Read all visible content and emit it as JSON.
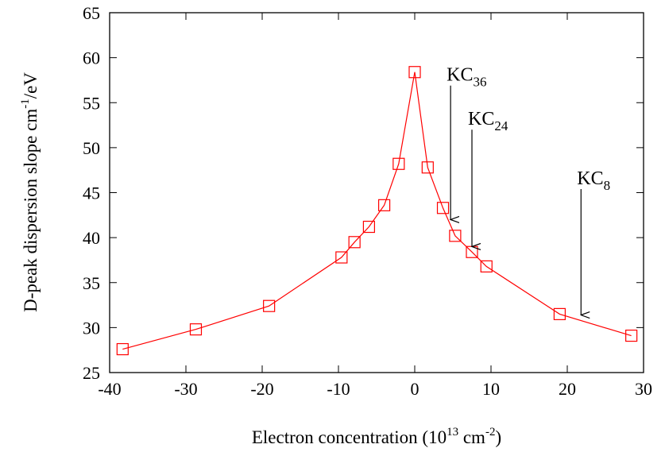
{
  "chart_data": {
    "type": "line",
    "title": "",
    "xlabel": {
      "prefix": "Electron concentration (10",
      "exp1": "13",
      "mid": " cm",
      "exp2": "-2",
      "suffix": ")"
    },
    "ylabel": {
      "prefix": "D-peak dispersion slope cm",
      "exp": "-1",
      "suffix": "/eV"
    },
    "xlim": [
      -40,
      30
    ],
    "ylim": [
      25,
      65
    ],
    "xticks": [
      -40,
      -30,
      -20,
      -10,
      0,
      10,
      20,
      30
    ],
    "yticks": [
      25,
      30,
      35,
      40,
      45,
      50,
      55,
      60,
      65
    ],
    "grid": false,
    "legend": "none",
    "series": [
      {
        "color": "#ff0000",
        "marker": "open-square",
        "x": [
          -38.3,
          -28.7,
          -19.1,
          -9.6,
          -7.9,
          -6.0,
          -4.0,
          -2.1,
          0.0,
          1.7,
          3.7,
          5.3,
          7.5,
          9.4,
          19.0,
          28.4
        ],
        "y": [
          27.6,
          29.8,
          32.4,
          37.8,
          39.5,
          41.2,
          43.6,
          48.2,
          58.4,
          47.8,
          43.3,
          40.2,
          38.4,
          36.8,
          31.5,
          29.1
        ]
      }
    ],
    "annotations": [
      {
        "base": "KC",
        "sub": "36",
        "x": 4.7,
        "y_top": 56.9,
        "y_bottom": 42.0
      },
      {
        "base": "KC",
        "sub": "24",
        "x": 7.5,
        "y_top": 52.0,
        "y_bottom": 39.0
      },
      {
        "base": "KC",
        "sub": "8",
        "x": 21.8,
        "y_top": 45.4,
        "y_bottom": 31.4
      }
    ]
  }
}
